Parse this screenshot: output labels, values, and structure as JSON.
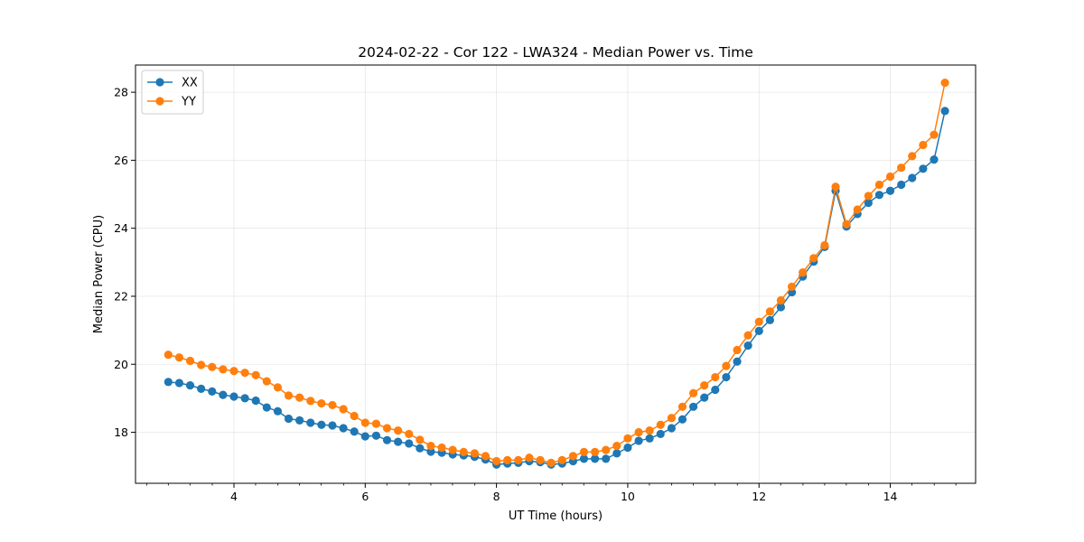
{
  "chart_data": {
    "type": "line",
    "title": "2024-02-22 - Cor 122 - LWA324 - Median Power vs. Time",
    "xlabel": "UT Time (hours)",
    "ylabel": "Median Power (CPU)",
    "xlim": [
      2.5,
      15.3
    ],
    "ylim": [
      16.5,
      28.8
    ],
    "grid": true,
    "legend_position": "top-left",
    "x_ticks": [
      4,
      6,
      8,
      10,
      12,
      14
    ],
    "x_tick_labels": [
      "4",
      "6",
      "8",
      "10",
      "12",
      "14"
    ],
    "x_minor_ticks": [
      2.67,
      3.0,
      3.33,
      3.67,
      4.33,
      4.67,
      5.0,
      5.33,
      5.67,
      6.33,
      6.67,
      7.0,
      7.33,
      7.67,
      8.33,
      8.67,
      9.0,
      9.33,
      9.67,
      10.33,
      10.67,
      11.0,
      11.33,
      11.67,
      12.33,
      12.67,
      13.0,
      13.33,
      13.67,
      14.33,
      14.67,
      15.0
    ],
    "y_ticks": [
      18,
      20,
      22,
      24,
      26,
      28
    ],
    "y_tick_labels": [
      "18",
      "20",
      "22",
      "24",
      "26",
      "28"
    ],
    "x": [
      3.0,
      3.167,
      3.333,
      3.5,
      3.667,
      3.833,
      4.0,
      4.167,
      4.333,
      4.5,
      4.667,
      4.833,
      5.0,
      5.167,
      5.333,
      5.5,
      5.667,
      5.833,
      6.0,
      6.167,
      6.333,
      6.5,
      6.667,
      6.833,
      7.0,
      7.167,
      7.333,
      7.5,
      7.667,
      7.833,
      8.0,
      8.167,
      8.333,
      8.5,
      8.667,
      8.833,
      9.0,
      9.167,
      9.333,
      9.5,
      9.667,
      9.833,
      10.0,
      10.167,
      10.333,
      10.5,
      10.667,
      10.833,
      11.0,
      11.167,
      11.333,
      11.5,
      11.667,
      11.833,
      12.0,
      12.167,
      12.333,
      12.5,
      12.667,
      12.833,
      13.0,
      13.167,
      13.333,
      13.5,
      13.667,
      13.833,
      14.0,
      14.167,
      14.333,
      14.5,
      14.667,
      14.833
    ],
    "series": [
      {
        "name": "XX",
        "color": "#1f77b4",
        "values": [
          19.48,
          19.45,
          19.38,
          19.28,
          19.2,
          19.1,
          19.05,
          19.0,
          18.93,
          18.73,
          18.62,
          18.4,
          18.35,
          18.28,
          18.22,
          18.2,
          18.12,
          18.02,
          17.88,
          17.9,
          17.77,
          17.72,
          17.67,
          17.53,
          17.43,
          17.4,
          17.35,
          17.32,
          17.28,
          17.2,
          17.05,
          17.08,
          17.1,
          17.15,
          17.12,
          17.05,
          17.08,
          17.15,
          17.22,
          17.22,
          17.22,
          17.38,
          17.55,
          17.75,
          17.82,
          17.95,
          18.12,
          18.38,
          18.75,
          19.02,
          19.25,
          19.62,
          20.08,
          20.55,
          20.98,
          21.3,
          21.68,
          22.12,
          22.58,
          23.02,
          23.45,
          25.1,
          24.05,
          24.42,
          24.75,
          24.98,
          25.1,
          25.28,
          25.48,
          25.75,
          26.02,
          27.45
        ]
      },
      {
        "name": "YY",
        "color": "#ff7f0e",
        "values": [
          20.28,
          20.2,
          20.1,
          19.98,
          19.92,
          19.85,
          19.8,
          19.75,
          19.68,
          19.5,
          19.32,
          19.08,
          19.02,
          18.92,
          18.85,
          18.8,
          18.68,
          18.48,
          18.28,
          18.25,
          18.12,
          18.05,
          17.95,
          17.78,
          17.6,
          17.55,
          17.48,
          17.42,
          17.38,
          17.3,
          17.15,
          17.18,
          17.18,
          17.25,
          17.18,
          17.1,
          17.18,
          17.3,
          17.42,
          17.42,
          17.48,
          17.6,
          17.82,
          18.0,
          18.05,
          18.22,
          18.42,
          18.75,
          19.15,
          19.38,
          19.62,
          19.95,
          20.42,
          20.85,
          21.25,
          21.55,
          21.88,
          22.28,
          22.7,
          23.12,
          23.5,
          25.22,
          24.12,
          24.55,
          24.95,
          25.28,
          25.52,
          25.78,
          26.12,
          26.45,
          26.75,
          28.28
        ]
      }
    ]
  }
}
